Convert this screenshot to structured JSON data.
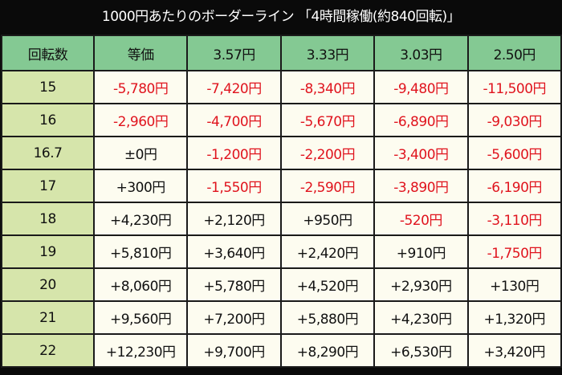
{
  "title": "1000円あたりのボーダーライン 「4時間稼働(約840回転)」",
  "colors": {
    "background": "#0a0a0a",
    "header_bg": "#84c993",
    "row_header_bg": "#d6e5ab",
    "cell_bg": "#fdfcf0",
    "negative_text": "#e0141e",
    "positive_text": "#111111"
  },
  "table": {
    "headers": [
      "回転数",
      "等価",
      "3.57円",
      "3.33円",
      "3.03円",
      "2.50円"
    ],
    "rows": [
      {
        "spins": "15",
        "cells": [
          "-5,780円",
          "-7,420円",
          "-8,340円",
          "-9,480円",
          "-11,500円"
        ]
      },
      {
        "spins": "16",
        "cells": [
          "-2,960円",
          "-4,700円",
          "-5,670円",
          "-6,890円",
          "-9,030円"
        ]
      },
      {
        "spins": "16.7",
        "cells": [
          "±0円",
          "-1,200円",
          "-2,200円",
          "-3,400円",
          "-5,600円"
        ]
      },
      {
        "spins": "17",
        "cells": [
          "+300円",
          "-1,550円",
          "-2,590円",
          "-3,890円",
          "-6,190円"
        ]
      },
      {
        "spins": "18",
        "cells": [
          "+4,230円",
          "+2,120円",
          "+950円",
          "-520円",
          "-3,110円"
        ]
      },
      {
        "spins": "19",
        "cells": [
          "+5,810円",
          "+3,640円",
          "+2,420円",
          "+910円",
          "-1,750円"
        ]
      },
      {
        "spins": "20",
        "cells": [
          "+8,060円",
          "+5,780円",
          "+4,520円",
          "+2,930円",
          "+130円"
        ]
      },
      {
        "spins": "21",
        "cells": [
          "+9,560円",
          "+7,200円",
          "+5,880円",
          "+4,230円",
          "+1,320円"
        ]
      },
      {
        "spins": "22",
        "cells": [
          "+12,230円",
          "+9,700円",
          "+8,290円",
          "+6,530円",
          "+3,420円"
        ]
      }
    ]
  }
}
